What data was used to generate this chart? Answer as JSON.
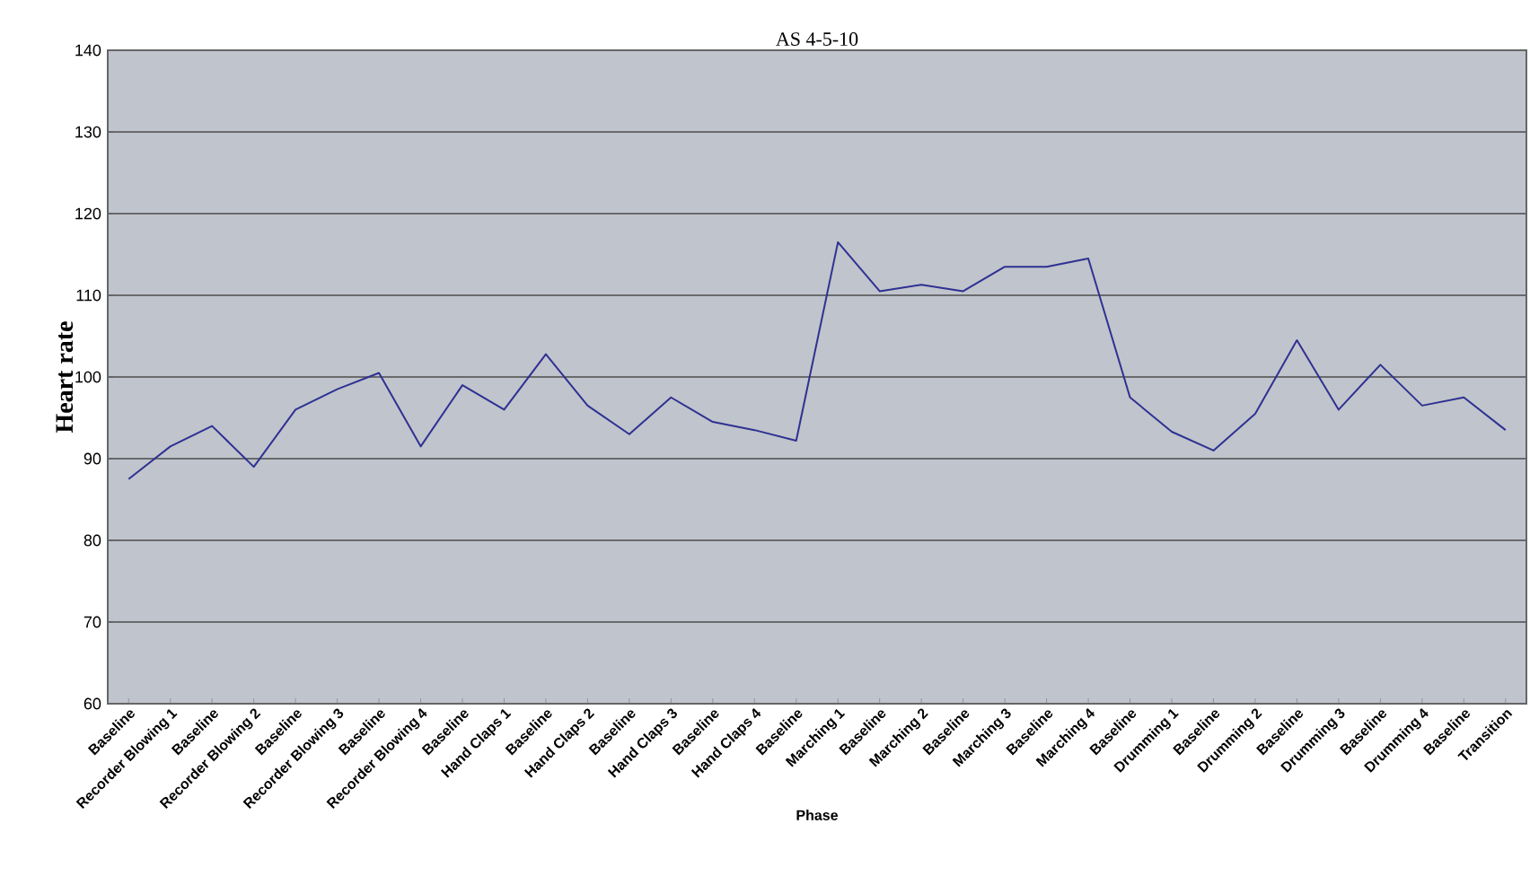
{
  "chart_data": {
    "type": "line",
    "title": "AS 4-5-10",
    "xlabel": "Phase",
    "ylabel": "Heart rate",
    "categories": [
      "Baseline",
      "Recorder Blowing 1",
      "Baseline",
      "Recorder Blowing 2",
      "Baseline",
      "Recorder Blowing 3",
      "Baseline",
      "Recorder Blowing 4",
      "Baseline",
      "Hand Claps 1",
      "Baseline",
      "Hand Claps 2",
      "Baseline",
      "Hand Claps 3",
      "Baseline",
      "Hand Claps 4",
      "Baseline",
      "Marching 1",
      "Baseline",
      "Marching 2",
      "Baseline",
      "Marching 3",
      "Baseline",
      "Marching 4",
      "Baseline",
      "Drumming 1",
      "Baseline",
      "Drumming 2",
      "Baseline",
      "Drumming 3",
      "Baseline",
      "Drumming 4",
      "Baseline",
      "Transition"
    ],
    "values": [
      87.5,
      91.5,
      94,
      89,
      96,
      98.5,
      100.5,
      91.5,
      99,
      96,
      102.8,
      96.5,
      93,
      97.5,
      94.5,
      93.5,
      92.2,
      116.5,
      110.5,
      111.3,
      110.5,
      113.5,
      113.5,
      114.5,
      97.5,
      93.3,
      91,
      95.5,
      104.5,
      96,
      101.5,
      96.5,
      97.5,
      93.5
    ],
    "color": "#2e3192",
    "ylim": [
      60,
      140
    ],
    "yticks": [
      60,
      70,
      80,
      90,
      100,
      110,
      120,
      130,
      140
    ],
    "grid": "y",
    "marker": "none",
    "line_style": "solid"
  }
}
